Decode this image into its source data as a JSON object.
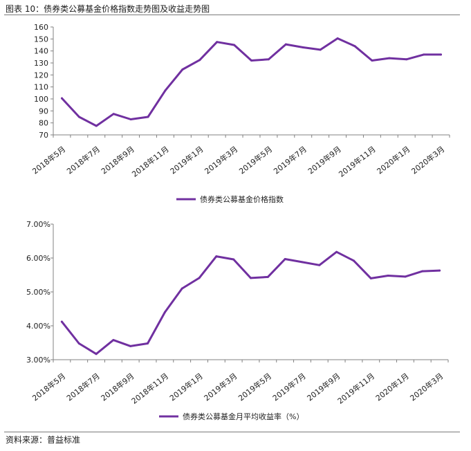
{
  "figure_title": "图表 10：债券类公募基金价格指数走势图及收益走势图",
  "source": "资料来源：普益标准",
  "colors": {
    "line": "#7030a0",
    "axis": "#808080",
    "text": "#222222"
  },
  "chart_data": [
    {
      "type": "line",
      "title": "",
      "xlabel": "",
      "ylabel": "",
      "x_tick_labels": [
        "2018年5月",
        "2018年7月",
        "2018年9月",
        "2018年11月",
        "2019年1月",
        "2019年3月",
        "2019年5月",
        "2019年7月",
        "2019年9月",
        "2019年11月",
        "2020年1月",
        "2020年3月"
      ],
      "y_ticks": [
        70,
        80,
        90,
        100,
        110,
        120,
        130,
        140,
        150,
        160
      ],
      "y_tick_labels": [
        "70",
        "80",
        "90",
        "100",
        "110",
        "120",
        "130",
        "140",
        "150",
        "160"
      ],
      "ylim": [
        70,
        160
      ],
      "grid": false,
      "legend_position": "bottom",
      "series": [
        {
          "name": "债券类公募基金价格指数",
          "x": [
            0,
            1,
            2,
            3,
            4,
            5,
            6,
            7,
            8,
            9,
            10,
            11,
            12,
            13,
            14,
            15,
            16,
            17,
            18,
            19,
            20,
            21,
            22
          ],
          "values": [
            100.5,
            85,
            77.5,
            87.5,
            83,
            85,
            107,
            124.5,
            132.5,
            147.5,
            145,
            132,
            133,
            145.5,
            143,
            141,
            150.5,
            144,
            132,
            134,
            133,
            137,
            137
          ]
        }
      ]
    },
    {
      "type": "line",
      "title": "",
      "xlabel": "",
      "ylabel": "",
      "x_tick_labels": [
        "2018年5月",
        "2018年7月",
        "2018年9月",
        "2018年11月",
        "2019年1月",
        "2019年3月",
        "2019年5月",
        "2019年7月",
        "2019年9月",
        "2019年11月",
        "2020年1月",
        "2020年3月"
      ],
      "y_ticks": [
        3,
        4,
        5,
        6,
        7
      ],
      "y_tick_labels": [
        "3.00%",
        "4.00%",
        "5.00%",
        "6.00%",
        "7.00%"
      ],
      "ylim": [
        3,
        7
      ],
      "grid": false,
      "legend_position": "bottom",
      "series": [
        {
          "name": "债券类公募基金月平均收益率（%）",
          "x": [
            0,
            1,
            2,
            3,
            4,
            5,
            6,
            7,
            8,
            9,
            10,
            11,
            12,
            13,
            14,
            15,
            16,
            17,
            18,
            19,
            20,
            21,
            22
          ],
          "values": [
            4.12,
            3.48,
            3.17,
            3.58,
            3.4,
            3.48,
            4.4,
            5.1,
            5.41,
            6.05,
            5.96,
            5.41,
            5.44,
            5.97,
            5.88,
            5.79,
            6.18,
            5.92,
            5.4,
            5.48,
            5.45,
            5.61,
            5.63
          ]
        }
      ]
    }
  ]
}
